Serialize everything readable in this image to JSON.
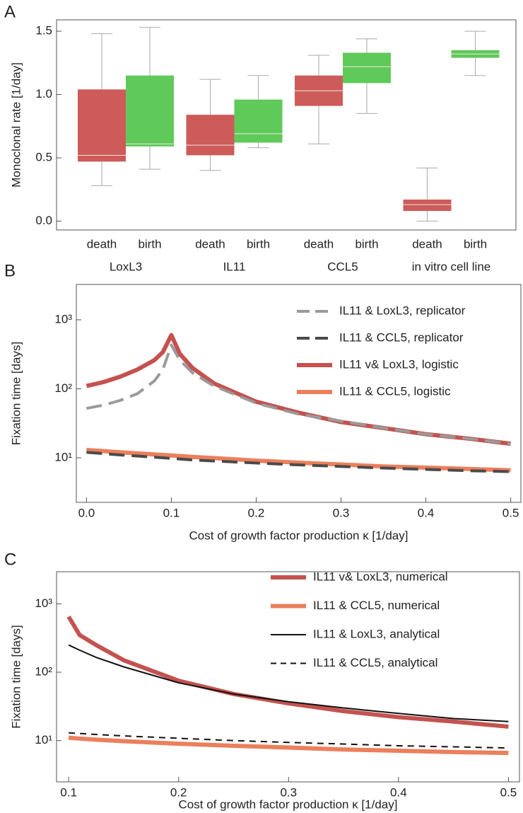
{
  "chart_data": [
    {
      "type": "box",
      "panel": "A",
      "ylabel": "Monoclonal rate [1/day]",
      "categories": [
        "death",
        "birth",
        "death",
        "birth",
        "death",
        "birth",
        "death",
        "birth"
      ],
      "groups": [
        "LoxL3",
        "IL11",
        "CCL5",
        "in vitro cell line"
      ],
      "colors": [
        "#cd5b59",
        "#5fca5a",
        "#cd5b59",
        "#5fca5a",
        "#cd5b59",
        "#5fca5a",
        "#cd5b59",
        "#5fca5a"
      ],
      "boxes": [
        {
          "min": 0.28,
          "q1": 0.47,
          "median": 0.52,
          "q3": 1.04,
          "max": 1.48
        },
        {
          "min": 0.41,
          "q1": 0.59,
          "median": 0.61,
          "q3": 1.15,
          "max": 1.53
        },
        {
          "min": 0.4,
          "q1": 0.52,
          "median": 0.6,
          "q3": 0.84,
          "max": 1.12
        },
        {
          "min": 0.58,
          "q1": 0.62,
          "median": 0.69,
          "q3": 0.96,
          "max": 1.15
        },
        {
          "min": 0.61,
          "q1": 0.91,
          "median": 1.03,
          "q3": 1.15,
          "max": 1.31
        },
        {
          "min": 0.85,
          "q1": 1.09,
          "median": 1.22,
          "q3": 1.33,
          "max": 1.44
        },
        {
          "min": 0.0,
          "q1": 0.08,
          "median": 0.13,
          "q3": 0.17,
          "max": 0.42
        },
        {
          "min": 1.15,
          "q1": 1.29,
          "median": 1.32,
          "q3": 1.35,
          "max": 1.5
        }
      ],
      "ylim": [
        -0.07,
        1.59
      ],
      "yticks": [
        {
          "value": 0,
          "label": "0.0"
        },
        0.5,
        {
          "value": 1,
          "label": "1.0"
        },
        1.5
      ]
    },
    {
      "type": "line",
      "panel": "B",
      "ylabel": "Fixation time [days]",
      "xlabel": "Cost of growth factor production κ [1/day]",
      "log_y": true,
      "legend": "upper right",
      "x": [
        0,
        0.02,
        0.04,
        0.06,
        0.08,
        0.09,
        0.1,
        0.11,
        0.125,
        0.15,
        0.2,
        0.25,
        0.3,
        0.35,
        0.4,
        0.45,
        0.5
      ],
      "series": [
        {
          "name": "IL11 & LoxL3, replicator",
          "color": "#9a9a9a",
          "dash": "dashed",
          "values": [
            52,
            58,
            68,
            85,
            130,
            190,
            430,
            260,
            170,
            110,
            62,
            43,
            34,
            27,
            22,
            19,
            16
          ]
        },
        {
          "name": "IL11 & CCL5, replicator",
          "color": "#4a4a4a",
          "dash": "dashed",
          "values": [
            12,
            11.5,
            11,
            10.6,
            10.2,
            10,
            9.8,
            9.6,
            9.3,
            9,
            8.4,
            7.9,
            7.5,
            7.1,
            6.8,
            6.5,
            6.3
          ]
        },
        {
          "name": "IL11 v& LoxL3, logistic",
          "color": "#c4524f",
          "dash": "solid",
          "values": [
            110,
            125,
            150,
            190,
            260,
            340,
            600,
            320,
            200,
            120,
            65,
            45,
            33,
            27,
            22,
            19,
            16
          ]
        },
        {
          "name": "IL11 & CCL5, logistic",
          "color": "#ec7f5c",
          "dash": "solid",
          "values": [
            13,
            12.5,
            12,
            11.6,
            11.2,
            11,
            10.8,
            10.6,
            10.3,
            9.9,
            9.1,
            8.5,
            8,
            7.5,
            7.2,
            6.9,
            6.6
          ]
        }
      ],
      "xlim": [
        -0.012,
        0.512
      ],
      "xticks": [
        {
          "value": 0,
          "label": "0.0"
        },
        0.1,
        0.2,
        0.3,
        0.4,
        0.5
      ],
      "ylim": [
        2.26,
        3250
      ],
      "yticks": [
        {
          "value": 10,
          "label": "10¹"
        },
        {
          "value": 100,
          "label": "10²"
        },
        {
          "value": 1000,
          "label": "10³"
        }
      ]
    },
    {
      "type": "line",
      "panel": "C",
      "ylabel": "Fixation time [days]",
      "xlabel": "Cost of growth factor production κ [1/day]",
      "log_y": true,
      "legend": "upper right",
      "x": [
        0.1,
        0.11,
        0.125,
        0.15,
        0.2,
        0.25,
        0.3,
        0.35,
        0.4,
        0.45,
        0.5
      ],
      "series": [
        {
          "name": "IL11 v& LoxL3, numerical",
          "color": "#c4524f",
          "dash": "solid",
          "values": [
            650,
            350,
            250,
            150,
            75,
            48,
            35,
            27,
            22,
            19,
            16
          ]
        },
        {
          "name": "IL11 & CCL5, numerical",
          "color": "#ec7f5c",
          "dash": "solid",
          "values": [
            11,
            10.7,
            10.3,
            9.8,
            9,
            8.4,
            7.9,
            7.4,
            7.1,
            6.8,
            6.6
          ]
        },
        {
          "name": "IL11 & LoxL3, analytical",
          "color": "#111111",
          "dash": "thin",
          "values": [
            250,
            210,
            165,
            120,
            70,
            48,
            37,
            30,
            25,
            21,
            19
          ]
        },
        {
          "name": "IL11 & CCL5, analytical",
          "color": "#111111",
          "dash": "dashed",
          "values": [
            13,
            12.7,
            12.3,
            11.7,
            10.8,
            10,
            9.4,
            8.9,
            8.4,
            8.1,
            7.8
          ]
        }
      ],
      "xlim": [
        0.089,
        0.51
      ],
      "xticks": [
        0.1,
        0.2,
        0.3,
        0.4,
        0.5
      ],
      "ylim": [
        2.49,
        2950
      ],
      "yticks": [
        {
          "value": 10,
          "label": "10¹"
        },
        {
          "value": 100,
          "label": "10²"
        },
        {
          "value": 1000,
          "label": "10³"
        }
      ]
    }
  ]
}
